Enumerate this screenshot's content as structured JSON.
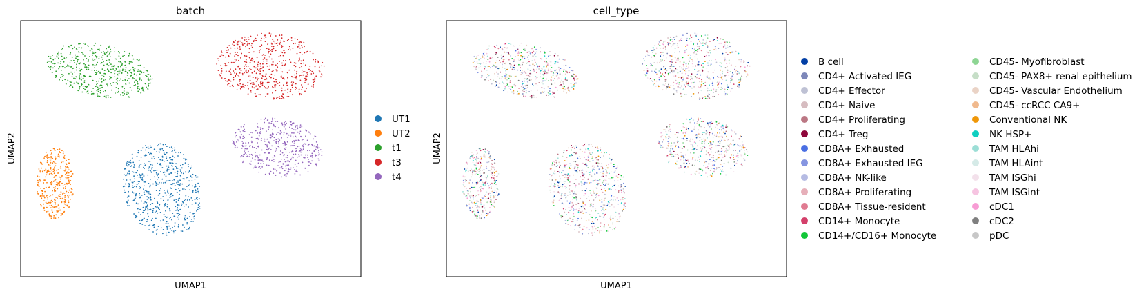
{
  "chart_data": [
    {
      "type": "scatter",
      "title": "batch",
      "xlabel": "UMAP1",
      "ylabel": "UMAP2",
      "xticks": false,
      "yticks": false,
      "grid": false,
      "legend_placement": "right",
      "series": [
        {
          "name": "UT1",
          "color": "#1f77b4"
        },
        {
          "name": "UT2",
          "color": "#ff7f0e"
        },
        {
          "name": "t1",
          "color": "#2ca02c"
        },
        {
          "name": "t3",
          "color": "#d62728"
        },
        {
          "name": "t4",
          "color": "#9467bd"
        }
      ]
    },
    {
      "type": "scatter",
      "title": "cell_type",
      "xlabel": "UMAP1",
      "ylabel": "UMAP2",
      "xticks": false,
      "yticks": false,
      "grid": false,
      "legend_placement": "right",
      "legend_columns": 2,
      "series": [
        {
          "name": "B cell",
          "color": "#023fa5"
        },
        {
          "name": "CD4+ Activated IEG",
          "color": "#7d87b9"
        },
        {
          "name": "CD4+ Effector",
          "color": "#bec1d4"
        },
        {
          "name": "CD4+ Naive",
          "color": "#d6bcc0"
        },
        {
          "name": "CD4+ Proliferating",
          "color": "#bb7784"
        },
        {
          "name": "CD4+ Treg",
          "color": "#8e063b"
        },
        {
          "name": "CD8A+ Exhausted",
          "color": "#4a6fe3"
        },
        {
          "name": "CD8A+ Exhausted IEG",
          "color": "#8595e1"
        },
        {
          "name": "CD8A+ NK-like",
          "color": "#b5bbe3"
        },
        {
          "name": "CD8A+ Proliferating",
          "color": "#e6afb9"
        },
        {
          "name": "CD8A+ Tissue-resident",
          "color": "#e07b91"
        },
        {
          "name": "CD14+ Monocyte",
          "color": "#d33f6a"
        },
        {
          "name": "CD14+/CD16+ Monocyte",
          "color": "#11c638"
        },
        {
          "name": "CD45- Myofibroblast",
          "color": "#8dd593"
        },
        {
          "name": "CD45- PAX8+ renal epithelium",
          "color": "#c6dec7"
        },
        {
          "name": "CD45- Vascular Endothelium",
          "color": "#ead3c6"
        },
        {
          "name": "CD45- ccRCC CA9+",
          "color": "#f0b98d"
        },
        {
          "name": "Conventional NK",
          "color": "#ef9708"
        },
        {
          "name": "NK HSP+",
          "color": "#0fcfc0"
        },
        {
          "name": "TAM HLAhi",
          "color": "#9cded6"
        },
        {
          "name": "TAM HLAint",
          "color": "#d5eae7"
        },
        {
          "name": "TAM ISGhi",
          "color": "#f3e1eb"
        },
        {
          "name": "TAM ISGint",
          "color": "#f6c4e1"
        },
        {
          "name": "cDC1",
          "color": "#f79cd4"
        },
        {
          "name": "cDC2",
          "color": "#7f7f7f"
        },
        {
          "name": "pDC",
          "color": "#c7c7c7"
        }
      ]
    }
  ]
}
